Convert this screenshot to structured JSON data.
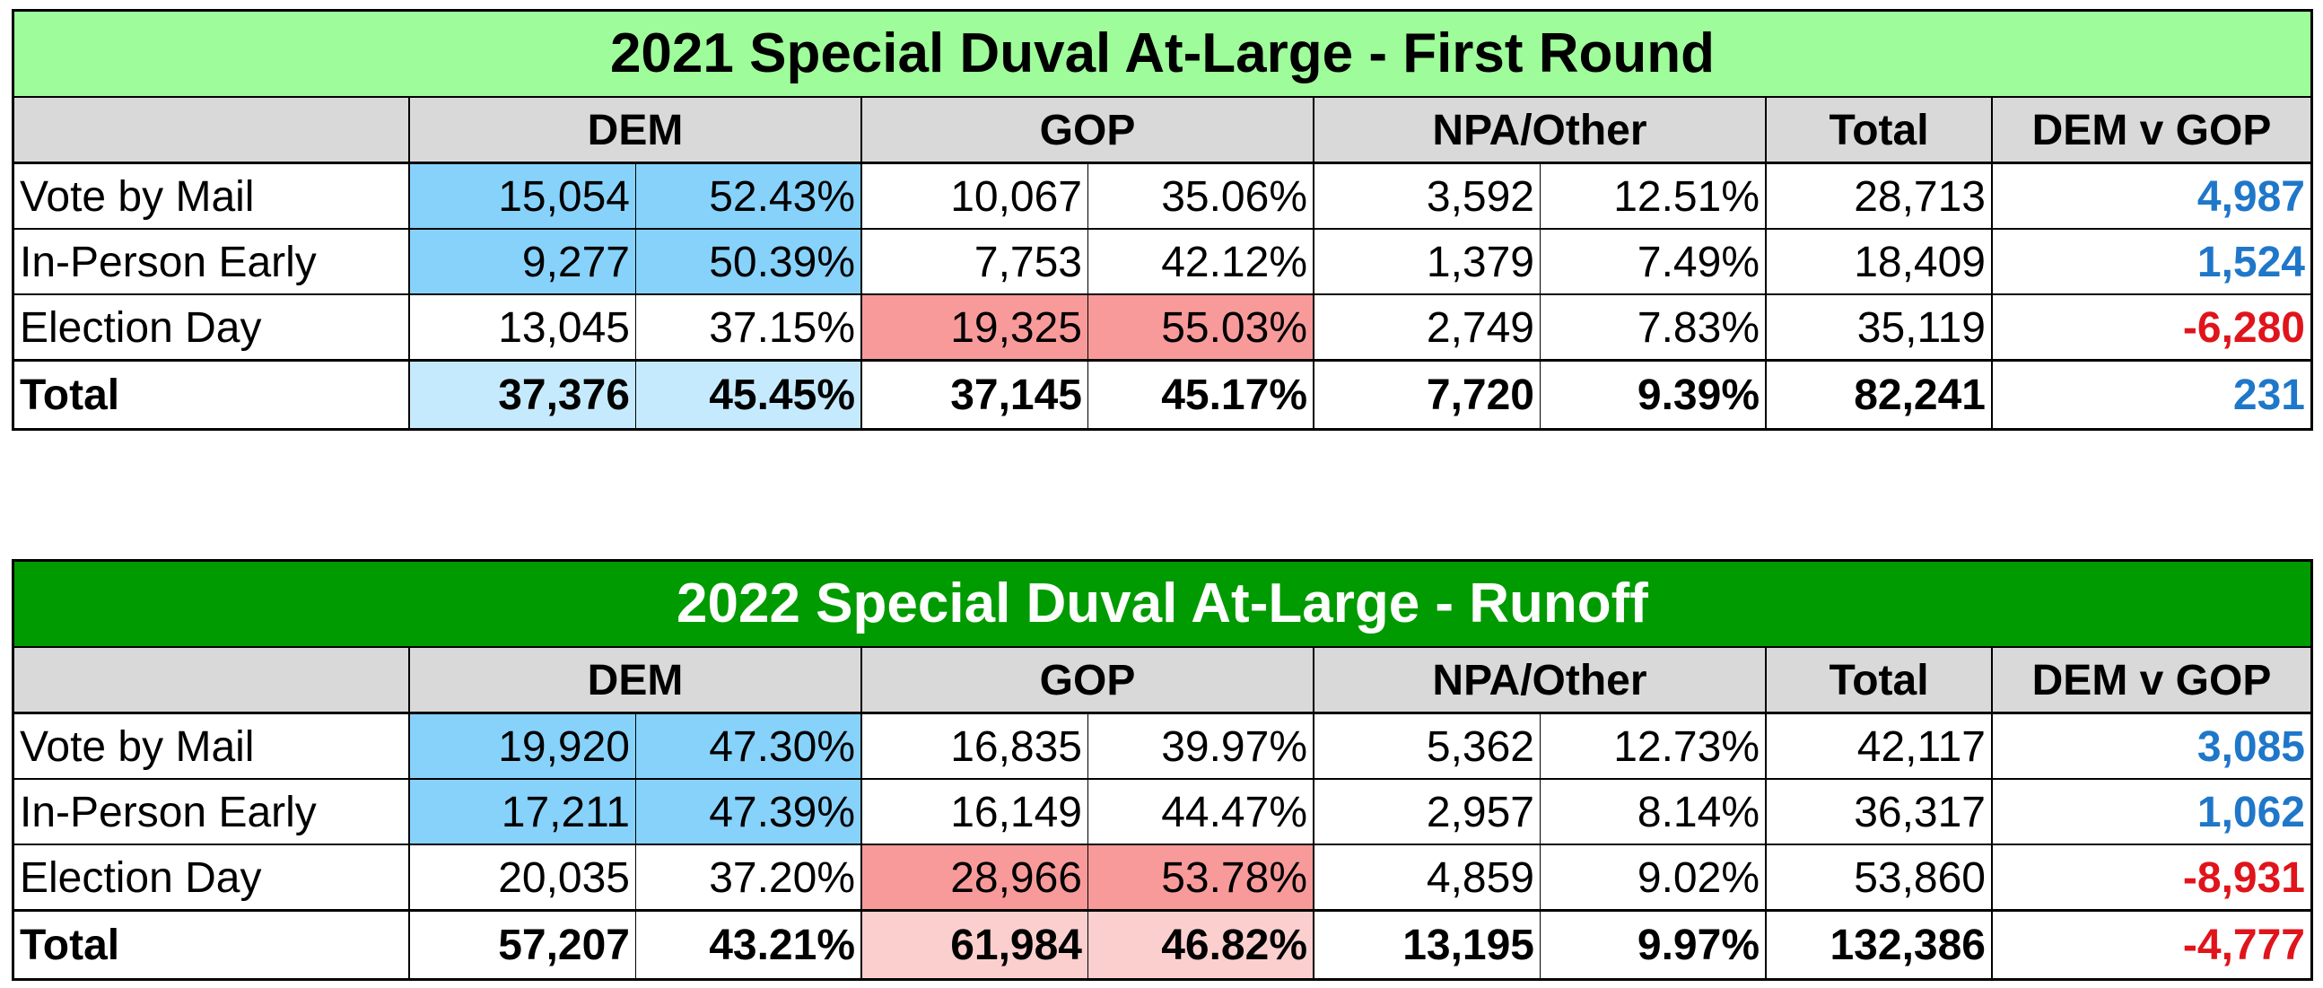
{
  "colors": {
    "title1_bg": "#9ffc9a",
    "title2_bg": "#009b00",
    "header_bg": "#d9d9d9",
    "dem_strong": "#87d2fb",
    "dem_light": "#c6eafd",
    "gop_strong": "#f99a9a",
    "gop_light": "#fccfcf",
    "positive": "#1f77c9",
    "negative": "#e0141b"
  },
  "headers": [
    "DEM",
    "GOP",
    "NPA/Other",
    "Total",
    "DEM v GOP"
  ],
  "tables": [
    {
      "title": "2021 Special Duval At-Large - First Round",
      "rows": [
        {
          "label": "Vote by Mail",
          "dem": "15,054",
          "dem_pct": "52.43%",
          "gop": "10,067",
          "gop_pct": "35.06%",
          "npa": "3,592",
          "npa_pct": "12.51%",
          "total": "28,713",
          "diff": "4,987"
        },
        {
          "label": "In-Person Early",
          "dem": "9,277",
          "dem_pct": "50.39%",
          "gop": "7,753",
          "gop_pct": "42.12%",
          "npa": "1,379",
          "npa_pct": "7.49%",
          "total": "18,409",
          "diff": "1,524"
        },
        {
          "label": "Election Day",
          "dem": "13,045",
          "dem_pct": "37.15%",
          "gop": "19,325",
          "gop_pct": "55.03%",
          "npa": "2,749",
          "npa_pct": "7.83%",
          "total": "35,119",
          "diff": "-6,280"
        },
        {
          "label": "Total",
          "dem": "37,376",
          "dem_pct": "45.45%",
          "gop": "37,145",
          "gop_pct": "45.17%",
          "npa": "7,720",
          "npa_pct": "9.39%",
          "total": "82,241",
          "diff": "231"
        }
      ]
    },
    {
      "title": "2022 Special Duval At-Large - Runoff",
      "rows": [
        {
          "label": "Vote by Mail",
          "dem": "19,920",
          "dem_pct": "47.30%",
          "gop": "16,835",
          "gop_pct": "39.97%",
          "npa": "5,362",
          "npa_pct": "12.73%",
          "total": "42,117",
          "diff": "3,085"
        },
        {
          "label": "In-Person Early",
          "dem": "17,211",
          "dem_pct": "47.39%",
          "gop": "16,149",
          "gop_pct": "44.47%",
          "npa": "2,957",
          "npa_pct": "8.14%",
          "total": "36,317",
          "diff": "1,062"
        },
        {
          "label": "Election Day",
          "dem": "20,035",
          "dem_pct": "37.20%",
          "gop": "28,966",
          "gop_pct": "53.78%",
          "npa": "4,859",
          "npa_pct": "9.02%",
          "total": "53,860",
          "diff": "-8,931"
        },
        {
          "label": "Total",
          "dem": "57,207",
          "dem_pct": "43.21%",
          "gop": "61,984",
          "gop_pct": "46.82%",
          "npa": "13,195",
          "npa_pct": "9.97%",
          "total": "132,386",
          "diff": "-4,777"
        }
      ]
    }
  ]
}
